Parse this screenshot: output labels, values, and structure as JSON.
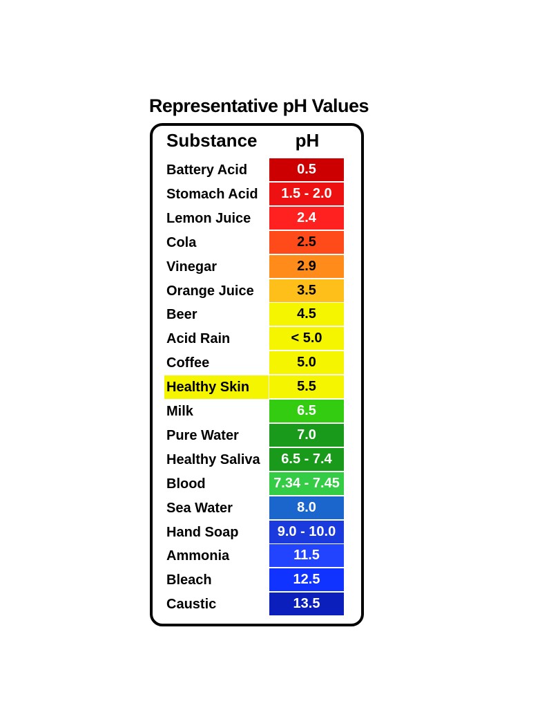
{
  "chart_data": {
    "type": "table",
    "title": "Representative pH Values",
    "columns": [
      "Substance",
      "pH"
    ],
    "rows": [
      {
        "substance": "Battery Acid",
        "ph": "0.5",
        "color": "#cc0000",
        "text_color": "#ffffff"
      },
      {
        "substance": "Stomach Acid",
        "ph": "1.5 - 2.0",
        "color": "#ee1111",
        "text_color": "#ffffff"
      },
      {
        "substance": "Lemon Juice",
        "ph": "2.4",
        "color": "#ff2020",
        "text_color": "#ffffff"
      },
      {
        "substance": "Cola",
        "ph": "2.5",
        "color": "#ff4a1a",
        "text_color": "#000000"
      },
      {
        "substance": "Vinegar",
        "ph": "2.9",
        "color": "#ff8c1a",
        "text_color": "#000000"
      },
      {
        "substance": "Orange Juice",
        "ph": "3.5",
        "color": "#ffbf1a",
        "text_color": "#000000"
      },
      {
        "substance": "Beer",
        "ph": "4.5",
        "color": "#f5f500",
        "text_color": "#000000"
      },
      {
        "substance": "Acid Rain",
        "ph": "< 5.0",
        "color": "#f5f500",
        "text_color": "#000000"
      },
      {
        "substance": "Coffee",
        "ph": "5.0",
        "color": "#f5f500",
        "text_color": "#000000"
      },
      {
        "substance": "Healthy Skin",
        "ph": "5.5",
        "color": "#f5f500",
        "text_color": "#000000",
        "highlight": true
      },
      {
        "substance": "Milk",
        "ph": "6.5",
        "color": "#33cc11",
        "text_color": "#ffffff"
      },
      {
        "substance": "Pure Water",
        "ph": "7.0",
        "color": "#1a9a1a",
        "text_color": "#ffffff"
      },
      {
        "substance": "Healthy Saliva",
        "ph": "6.5 - 7.4",
        "color": "#1a9a1a",
        "text_color": "#ffffff"
      },
      {
        "substance": "Blood",
        "ph": "7.34 - 7.45",
        "color": "#33cc44",
        "text_color": "#ffffff"
      },
      {
        "substance": "Sea Water",
        "ph": "8.0",
        "color": "#1a66cc",
        "text_color": "#ffffff"
      },
      {
        "substance": "Hand Soap",
        "ph": "9.0 - 10.0",
        "color": "#1a3add",
        "text_color": "#ffffff"
      },
      {
        "substance": "Ammonia",
        "ph": "11.5",
        "color": "#2244ff",
        "text_color": "#ffffff"
      },
      {
        "substance": "Bleach",
        "ph": "12.5",
        "color": "#1133ff",
        "text_color": "#ffffff"
      },
      {
        "substance": "Caustic",
        "ph": "13.5",
        "color": "#0a1fbb",
        "text_color": "#ffffff"
      }
    ]
  }
}
